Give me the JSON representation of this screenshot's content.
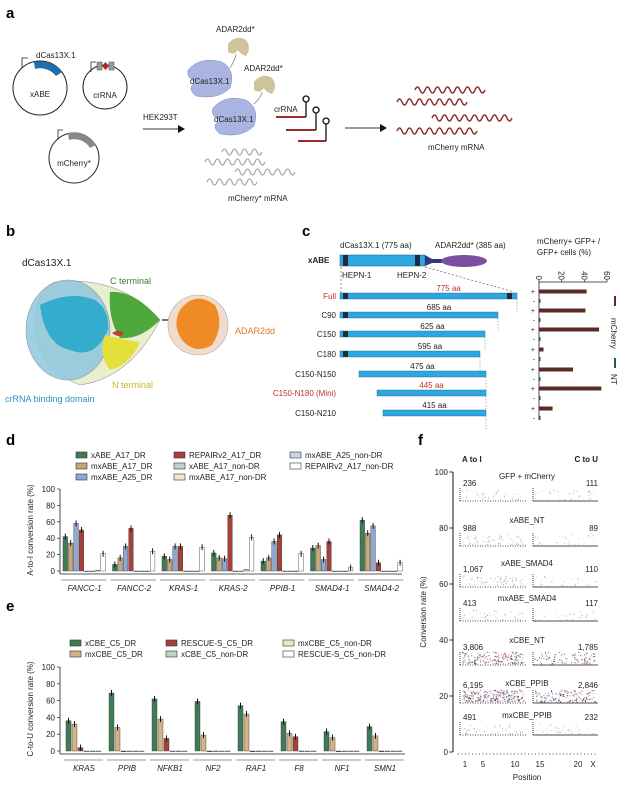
{
  "panels": {
    "a": {
      "label": "a",
      "plasmid_xabe": "xABE",
      "plasmid_xabe_gene": "dCas13X.1",
      "plasmid_crrna": "crRNA",
      "plasmid_mcherry": "mCherry*",
      "transfection": "HEK293T",
      "protein_1": "dCas13X.1",
      "protein_2": "dCas13X.1",
      "adar_1": "ADAR2dd*",
      "adar_2": "ADAR2dd*",
      "crrna_label": "crRNA",
      "input_mrna": "mCherry* mRNA",
      "output_mrna": "mCherry mRNA",
      "colors": {
        "cas": "#a9b4e0",
        "adar": "#cfc39c",
        "crrna": "#9b2a2a",
        "mrna_in": "#aaaaaa",
        "mrna_out": "#8b2c2c"
      }
    },
    "b": {
      "label": "b",
      "title": "dCas13X.1",
      "c_terminal": "C terminal",
      "n_terminal": "N terminal",
      "adar": "ADAR2dd",
      "crrna_domain": "crRNA binding domain"
    },
    "c": {
      "label": "c",
      "construct": "xABE",
      "cas_label": "dCas13X.1 (775 aa)",
      "adar_label": "ADAR2dd* (385 aa)",
      "hepn1": "HEPN-1",
      "hepn2": "HEPN-2",
      "chart_title_1": "mCherry+ GFP+ /",
      "chart_title_2": "GFP+ cells (%)",
      "legend": [
        "mCherry",
        "NT"
      ]
    },
    "d": {
      "label": "d"
    },
    "e": {
      "label": "e"
    },
    "f": {
      "label": "f",
      "left_header": "A to I",
      "right_header": "C to U",
      "ylabel": "Conversion rate (%)",
      "xlabel": "Position"
    }
  },
  "chart_data": [
    {
      "id": "c",
      "type": "bar",
      "orientation": "horizontal",
      "title": "mCherry+ GFP+ / GFP+ cells (%)",
      "categories": [
        "Full",
        "C90",
        "C150",
        "C180",
        "C150-N150",
        "C150-N180 (Mini)",
        "C150-N210"
      ],
      "lengths": [
        "775 aa",
        "685 aa",
        "625 aa",
        "595 aa",
        "475 aa",
        "445 aa",
        "415 aa"
      ],
      "highlight": [
        true,
        false,
        false,
        false,
        false,
        true,
        false
      ],
      "series": [
        {
          "name": "mCherry",
          "sign": "+",
          "values": [
            42,
            41,
            53,
            4,
            30,
            55,
            12
          ]
        },
        {
          "name": "NT",
          "sign": "-",
          "values": [
            0.5,
            0.5,
            0.5,
            0.5,
            0.5,
            0.5,
            0.5
          ]
        }
      ],
      "xlim": [
        0,
        60
      ],
      "ticks": [
        "0",
        "20",
        "40",
        "60"
      ]
    },
    {
      "id": "d",
      "type": "bar",
      "ylabel": "A-to-I conversion rate (%)",
      "ylim": [
        0,
        100
      ],
      "yticks": [
        "0",
        "20",
        "40",
        "60",
        "80",
        "100"
      ],
      "categories": [
        "FANCC-1",
        "FANCC-2",
        "KRAS-1",
        "KRAS-2",
        "PPIB-1",
        "SMAD4-1",
        "SMAD4-2"
      ],
      "series": [
        {
          "name": "xABE_A17_DR",
          "color": "#3f7c55",
          "values": [
            42,
            8,
            18,
            22,
            12,
            28,
            62
          ]
        },
        {
          "name": "mxABE_A17_DR",
          "color": "#c6a77c",
          "values": [
            34,
            16,
            14,
            16,
            16,
            31,
            46
          ]
        },
        {
          "name": "mxABE_A25_DR",
          "color": "#8ea8cf",
          "values": [
            58,
            30,
            30,
            15,
            36,
            14,
            55
          ]
        },
        {
          "name": "REPAIRv2_A17_DR",
          "color": "#a8403a",
          "values": [
            50,
            52,
            30,
            68,
            44,
            36,
            10
          ]
        },
        {
          "name": "xABE_A17_non-DR",
          "color": "#bcd6c4",
          "values": [
            0,
            0,
            0,
            0,
            0,
            0,
            0
          ]
        },
        {
          "name": "mxABE_A17_non-DR",
          "color": "#efe8cf",
          "values": [
            0,
            0,
            0,
            0,
            0,
            0,
            0
          ]
        },
        {
          "name": "mxABE_A25_non-DR",
          "color": "#c9d5ec",
          "values": [
            1,
            0,
            0,
            2,
            0,
            0,
            0
          ]
        },
        {
          "name": "REPAIRv2_A17_non-DR",
          "color": "#ffffff",
          "values": [
            21,
            24,
            29,
            41,
            21,
            4,
            10
          ]
        }
      ]
    },
    {
      "id": "e",
      "type": "bar",
      "ylabel": "C-to-U conversion rate (%)",
      "ylim": [
        0,
        100
      ],
      "yticks": [
        "0",
        "20",
        "40",
        "60",
        "80",
        "100"
      ],
      "categories": [
        "KRAS",
        "PPIB",
        "NFKB1",
        "NF2",
        "RAF1",
        "F8",
        "NF1",
        "SMN1"
      ],
      "series": [
        {
          "name": "xCBE_C5_DR",
          "color": "#3f7c55",
          "values": [
            36,
            69,
            62,
            59,
            54,
            35,
            23,
            29
          ]
        },
        {
          "name": "mxCBE_C5_DR",
          "color": "#d4b187",
          "values": [
            32,
            28,
            38,
            19,
            44,
            21,
            16,
            18
          ]
        },
        {
          "name": "RESCUE-S_C5_DR",
          "color": "#a8403a",
          "values": [
            4,
            0,
            15,
            0,
            0,
            17,
            0,
            0
          ]
        },
        {
          "name": "xCBE_C5_non-DR",
          "color": "#bcd6c4",
          "values": [
            0,
            0,
            0,
            0,
            0,
            0,
            0,
            0
          ]
        },
        {
          "name": "mxCBE_C5_non-DR",
          "color": "#efe4cc",
          "values": [
            0,
            0,
            0,
            0,
            0,
            0,
            0,
            0
          ]
        },
        {
          "name": "RESCUE-S_C5_non-DR",
          "color": "#ffffff",
          "values": [
            0,
            0,
            0,
            0,
            0,
            0,
            0,
            0
          ]
        }
      ]
    },
    {
      "id": "f",
      "type": "scatter",
      "ylabel": "Conversion rate (%)",
      "xlabel": "Position",
      "ylim": [
        0,
        100
      ],
      "yticks": [
        "0",
        "20",
        "40",
        "60",
        "80",
        "100"
      ],
      "xticks": [
        "1",
        "5",
        "10",
        "15",
        "20",
        "X"
      ],
      "samples": [
        {
          "name": "GFP + mCherry",
          "a_to_i": "236",
          "c_to_u": "111"
        },
        {
          "name": "xABE_NT",
          "a_to_i": "988",
          "c_to_u": "89"
        },
        {
          "name": "xABE_SMAD4",
          "a_to_i": "1,067",
          "c_to_u": "110"
        },
        {
          "name": "mxABE_SMAD4",
          "a_to_i": "413",
          "c_to_u": "117"
        },
        {
          "name": "xCBE_NT",
          "a_to_i": "3,806",
          "c_to_u": "1,785"
        },
        {
          "name": "xCBE_PPIB",
          "a_to_i": "6,195",
          "c_to_u": "2,846"
        },
        {
          "name": "mxCBE_PPIB",
          "a_to_i": "491",
          "c_to_u": "232"
        }
      ]
    }
  ]
}
